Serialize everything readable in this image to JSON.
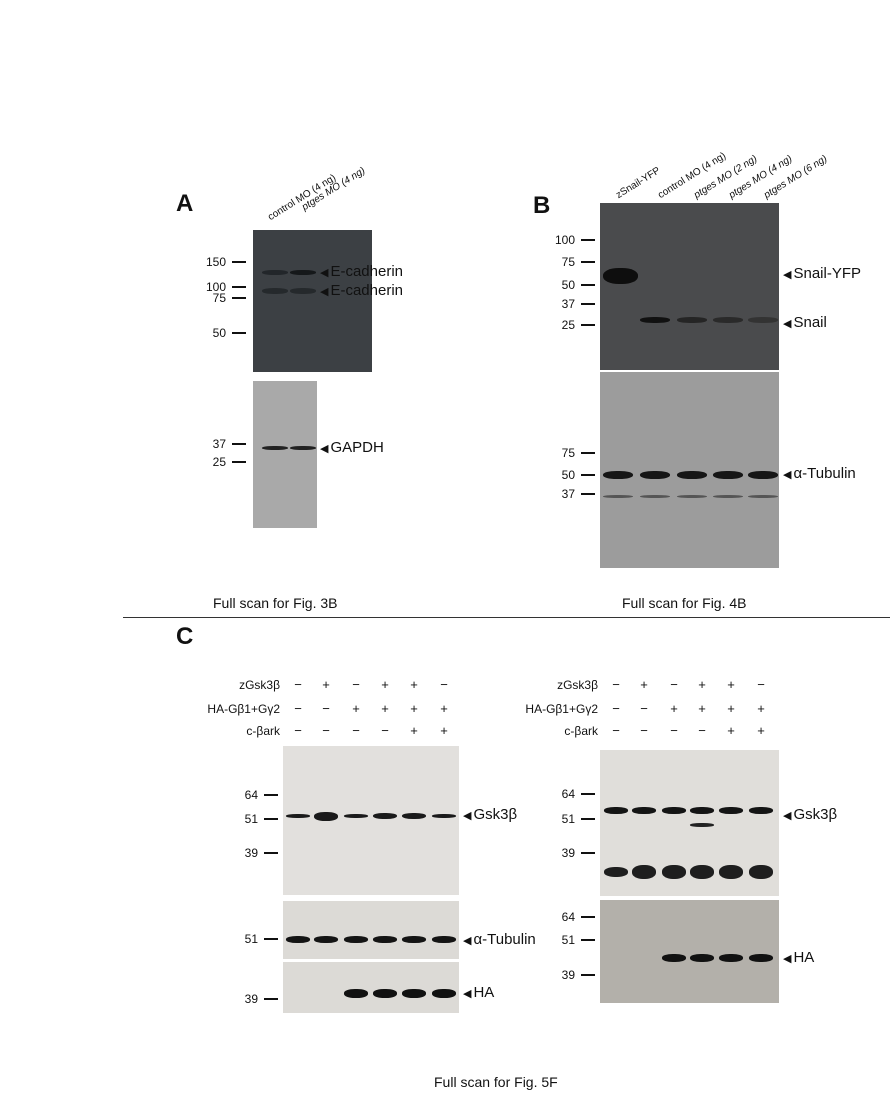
{
  "panelA": {
    "label": "A",
    "lanes": [
      "control MO (4 ng)",
      "ptges MO (4 ng)"
    ],
    "markers_top": [
      "150",
      "100",
      "75",
      "50"
    ],
    "markers_bottom": [
      "37",
      "25"
    ],
    "bands": [
      "E-cadherin",
      "E-cadherin",
      "GAPDH"
    ],
    "caption": "Full scan for Fig. 3B"
  },
  "panelB": {
    "label": "B",
    "lanes": [
      "zSnail-YFP",
      "control MO (4 ng)",
      "ptges MO (2 ng)",
      "ptges MO (4 ng)",
      "ptges MO (6 ng)"
    ],
    "markers_top": [
      "100",
      "75",
      "50",
      "37",
      "25"
    ],
    "markers_bottom": [
      "75",
      "50",
      "37"
    ],
    "bands": [
      "Snail-YFP",
      "Snail",
      "α-Tubulin"
    ],
    "caption": "Full scan for Fig. 4B"
  },
  "panelC": {
    "label": "C",
    "conditions": [
      {
        "name": "zGsk3β",
        "signs": [
          "−",
          "+",
          "−",
          "+",
          "+",
          "−"
        ]
      },
      {
        "name": "HA-Gβ1+Gγ2",
        "signs": [
          "−",
          "−",
          "+",
          "+",
          "+",
          "+"
        ]
      },
      {
        "name": "c-βark",
        "signs": [
          "−",
          "−",
          "−",
          "−",
          "+",
          "+"
        ]
      }
    ],
    "left": {
      "markers1": [
        "64",
        "51",
        "39"
      ],
      "markers2": [
        "51"
      ],
      "markers3": [
        "39"
      ],
      "bands": [
        "Gsk3β",
        "α-Tubulin",
        "HA"
      ]
    },
    "right": {
      "markers1": [
        "64",
        "51",
        "39"
      ],
      "markers2": [
        "64",
        "51",
        "39"
      ],
      "bands": [
        "Gsk3β",
        "HA"
      ]
    },
    "caption": "Full scan for Fig. 5F"
  },
  "arrow": "◀"
}
